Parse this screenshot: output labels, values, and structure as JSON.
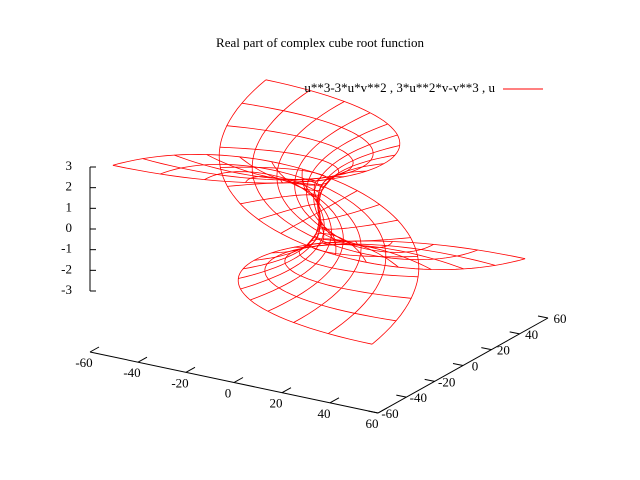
{
  "chart_data": {
    "type": "surface3d",
    "title": "Real part of complex cube root function",
    "series": [
      {
        "name": "u**3-3*u*v**2 , 3*u**2*v-v**3 , u",
        "color": "#ff0000",
        "urange": [
          -3,
          3
        ],
        "vrange": [
          -3,
          3
        ]
      }
    ],
    "xlim": [
      -60,
      60
    ],
    "xticks": [
      -60,
      -40,
      -20,
      0,
      20,
      40,
      60
    ],
    "ylim": [
      -60,
      60
    ],
    "yticks": [
      -60,
      -40,
      -20,
      0,
      20,
      40,
      60
    ],
    "zlim": [
      -3,
      3
    ],
    "zticks": [
      -3,
      -2,
      -1,
      0,
      1,
      2,
      3
    ],
    "legend": "top-right"
  }
}
